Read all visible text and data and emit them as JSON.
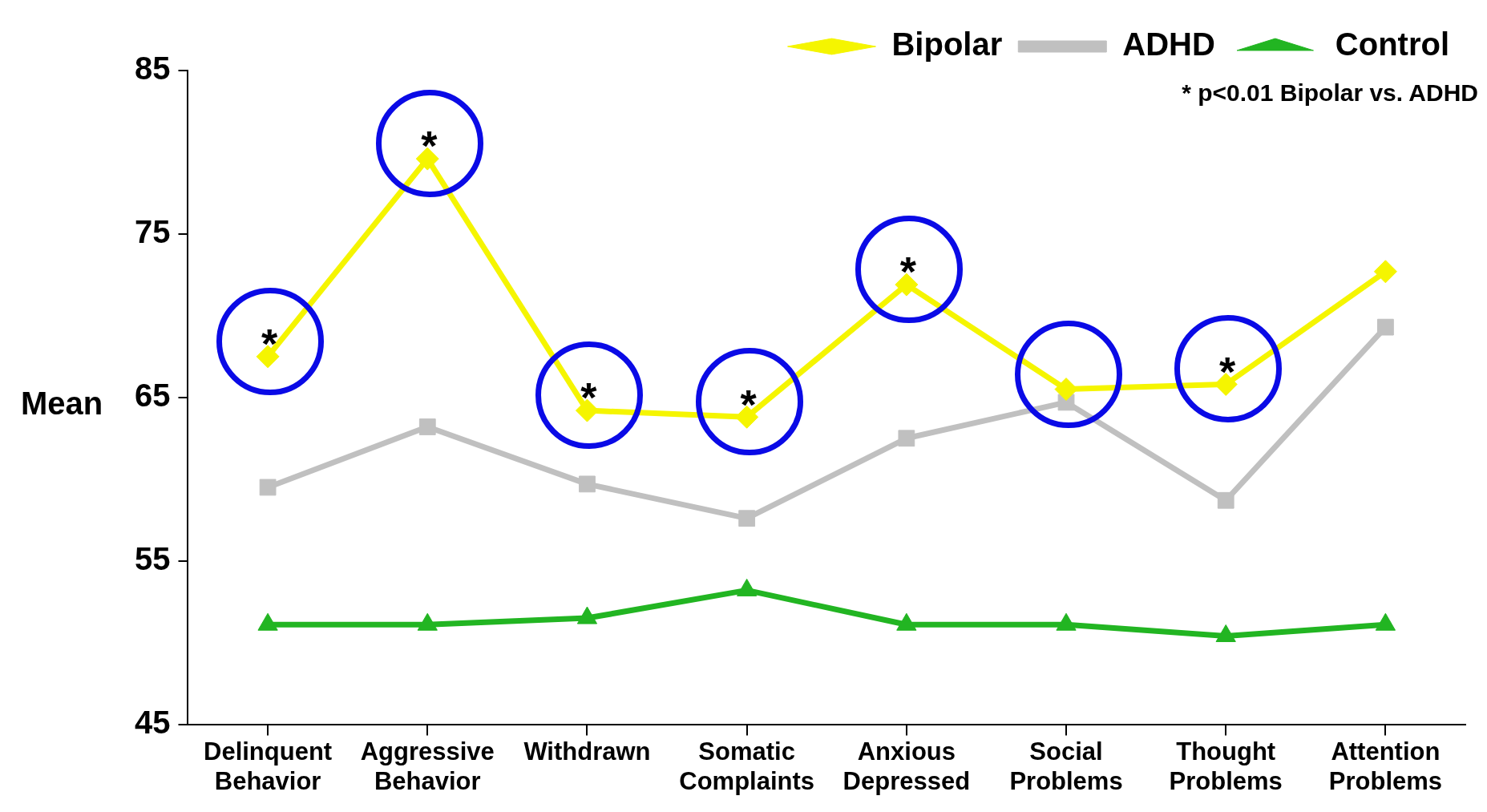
{
  "chart_data": {
    "type": "line",
    "ylabel": "Mean",
    "categories": [
      "Delinquent Behavior",
      "Aggressive Behavior",
      "Withdrawn",
      "Somatic Complaints",
      "Anxious Depressed",
      "Social Problems",
      "Thought Problems",
      "Attention Problems"
    ],
    "series": [
      {
        "name": "Bipolar",
        "color": "#f5f500",
        "marker": "diamond",
        "values": [
          67.5,
          79.6,
          64.2,
          63.8,
          71.9,
          65.5,
          65.8,
          72.7
        ]
      },
      {
        "name": "ADHD",
        "color": "#c0c0c0",
        "marker": "square",
        "values": [
          59.5,
          63.2,
          59.7,
          57.6,
          62.5,
          64.7,
          58.7,
          69.3
        ]
      },
      {
        "name": "Control",
        "color": "#22b522",
        "marker": "triangle",
        "values": [
          51.1,
          51.1,
          51.5,
          53.2,
          51.1,
          51.1,
          50.4,
          51.1
        ]
      }
    ],
    "ylim": [
      45,
      85
    ],
    "yticks": [
      45,
      55,
      65,
      75,
      85
    ],
    "grid": false,
    "legend": "top right",
    "annotations": [
      {
        "text": "*",
        "x": "Delinquent Behavior",
        "y": 67.5
      },
      {
        "text": "*",
        "x": "Aggressive Behavior",
        "y": 79.6
      },
      {
        "text": "*",
        "x": "Withdrawn",
        "y": 64.2
      },
      {
        "text": "*",
        "x": "Somatic Complaints",
        "y": 63.8
      },
      {
        "text": "*",
        "x": "Anxious Depressed",
        "y": 71.9
      },
      {
        "text": "*",
        "x": "Thought Problems",
        "y": 65.8
      },
      "* p<0.01 Bipolar vs. ADHD"
    ]
  }
}
